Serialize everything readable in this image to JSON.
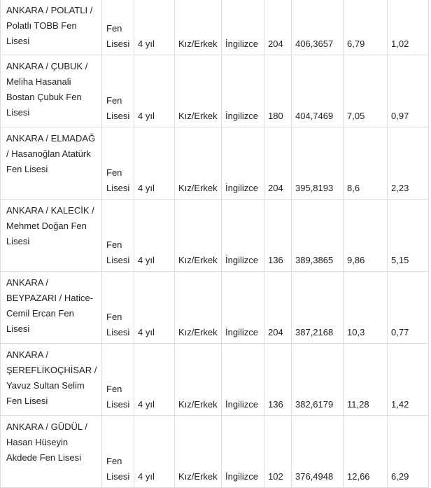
{
  "rows": [
    {
      "school": "ANKARA / POLATLI / Polatlı TOBB Fen Lisesi",
      "type": "Fen Lisesi",
      "duration": "4 yıl",
      "gender": "Kız/Erkek",
      "language": "İngilizce",
      "quota": "204",
      "score": "406,3657",
      "percentile_2018": "6,79",
      "percentile": "1,02",
      "size": "r2"
    },
    {
      "school": "ANKARA / ÇUBUK / Meliha Hasanali Bostan Çubuk Fen Lisesi",
      "type": "Fen Lisesi",
      "duration": "4 yıl",
      "gender": "Kız/Erkek",
      "language": "İngilizce",
      "quota": "180",
      "score": "404,7469",
      "percentile_2018": "7,05",
      "percentile": "0,97",
      "size": "r3"
    },
    {
      "school": "ANKARA / ELMADAĞ / Hasanoğlan Atatürk Fen Lisesi",
      "type": "Fen Lisesi",
      "duration": "4 yıl",
      "gender": "Kız/Erkek",
      "language": "İngilizce",
      "quota": "204",
      "score": "395,8193",
      "percentile_2018": "8,6",
      "percentile": "2,23",
      "size": "r3"
    },
    {
      "school": "ANKARA / KALECİK / Mehmet Doğan Fen Lisesi",
      "type": "Fen Lisesi",
      "duration": "4 yıl",
      "gender": "Kız/Erkek",
      "language": "İngilizce",
      "quota": "136",
      "score": "389,3865",
      "percentile_2018": "9,86",
      "percentile": "5,15",
      "size": "r3"
    },
    {
      "school": "ANKARA / BEYPAZARI / Hatice-Cemil Ercan Fen Lisesi",
      "type": "Fen Lisesi",
      "duration": "4 yıl",
      "gender": "Kız/Erkek",
      "language": "İngilizce",
      "quota": "204",
      "score": "387,2168",
      "percentile_2018": "10,3",
      "percentile": "0,77",
      "size": "r3"
    },
    {
      "school": "ANKARA / ŞEREFLİKOÇHİSAR / Yavuz Sultan Selim Fen Lisesi",
      "type": "Fen Lisesi",
      "duration": "4 yıl",
      "gender": "Kız/Erkek",
      "language": "İngilizce",
      "quota": "136",
      "score": "382,6179",
      "percentile_2018": "11,28",
      "percentile": "1,42",
      "size": "r3"
    },
    {
      "school": "ANKARA / GÜDÜL / Hasan Hüseyin Akdede Fen Lisesi",
      "type": "Fen Lisesi",
      "duration": "4 yıl",
      "gender": "Kız/Erkek",
      "language": "İngilizce",
      "quota": "102",
      "score": "376,4948",
      "percentile_2018": "12,66",
      "percentile": "6,29",
      "size": "r3"
    }
  ]
}
